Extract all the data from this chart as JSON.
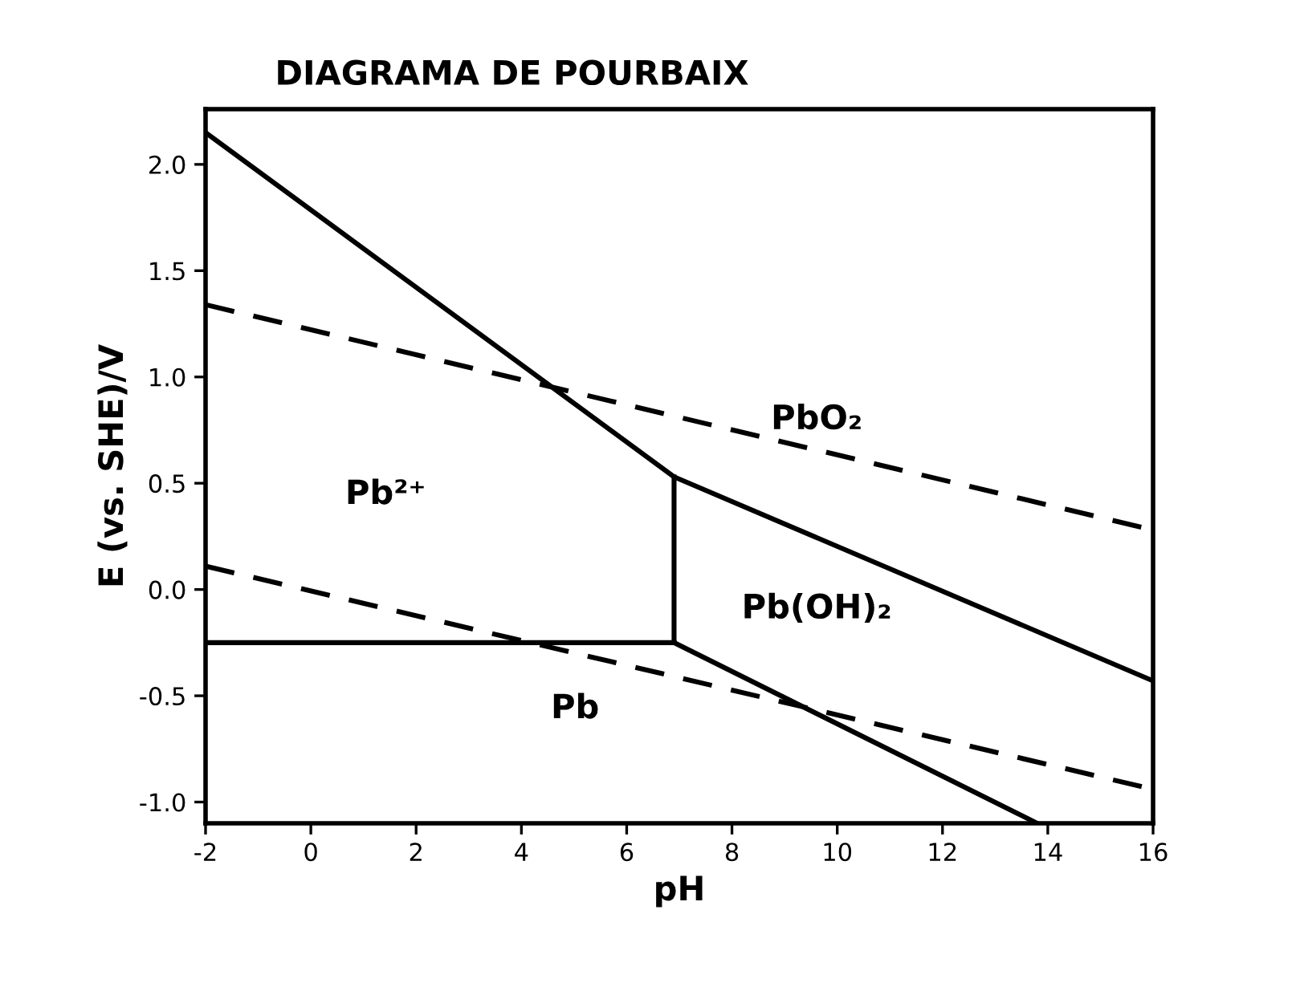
{
  "chart_data": {
    "type": "line",
    "title": "DIAGRAMA DE POURBAIX",
    "xlabel": "pH",
    "ylabel": "E (vs. SHE)/V",
    "xlim": [
      -2,
      16
    ],
    "ylim": [
      -1.1,
      2.26
    ],
    "xticks": [
      -2,
      0,
      2,
      4,
      6,
      8,
      10,
      12,
      14,
      16
    ],
    "yticks": [
      {
        "value": -1.0,
        "label": "-1.0"
      },
      {
        "value": -0.5,
        "label": "-0.5"
      },
      {
        "value": 0.0,
        "label": "0.0"
      },
      {
        "value": 0.5,
        "label": "0.5"
      },
      {
        "value": 1.0,
        "label": "1.0"
      },
      {
        "value": 1.5,
        "label": "1.5"
      },
      {
        "value": 2.0,
        "label": "2.0"
      }
    ],
    "grid": false,
    "marker": "none",
    "series": [
      {
        "color": "#000000",
        "line_style": "solid",
        "x": [
          -2,
          6.9,
          16
        ],
        "values": [
          2.15,
          0.53,
          -0.43
        ]
      },
      {
        "color": "#000000",
        "line_style": "solid",
        "x": [
          6.9,
          6.9
        ],
        "values": [
          0.53,
          -0.25
        ]
      },
      {
        "color": "#000000",
        "line_style": "solid",
        "x": [
          -2,
          6.9
        ],
        "values": [
          -0.25,
          -0.25
        ]
      },
      {
        "color": "#000000",
        "line_style": "solid",
        "x": [
          6.9,
          13.8
        ],
        "values": [
          -0.25,
          -1.1
        ]
      },
      {
        "color": "#000000",
        "line_style": "dashed",
        "x": [
          -2,
          16
        ],
        "values": [
          1.34,
          0.28
        ]
      },
      {
        "color": "#000000",
        "line_style": "dashed",
        "x": [
          -2,
          16
        ],
        "values": [
          0.11,
          -0.94
        ]
      }
    ],
    "annotations": [
      "Pb²⁺",
      "PbO₂",
      "Pb(OH)₂",
      "Pb"
    ]
  }
}
